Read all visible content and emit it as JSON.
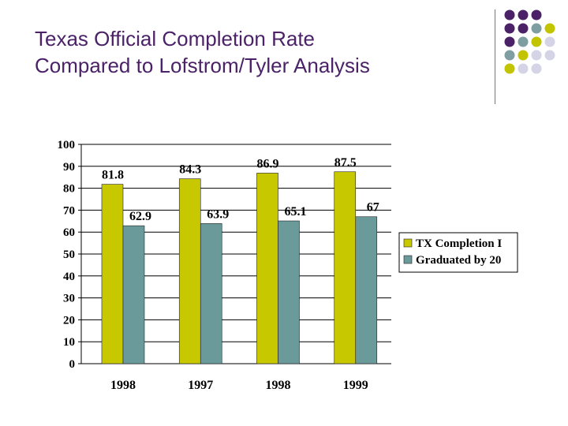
{
  "slide": {
    "title_line1": "Texas Official Completion Rate",
    "title_line2": "Compared to Lofstrom/Tyler Analysis"
  },
  "colors": {
    "title": "#4b2268",
    "series1": "#c8c800",
    "series2": "#6a9a9a",
    "dot_purple": "#4b2268",
    "dot_teal": "#7f9ea2",
    "dot_olive": "#c3c400",
    "dot_lavender": "#d4d4e6"
  },
  "chart_data": {
    "type": "bar",
    "title": "",
    "xlabel": "",
    "ylabel": "",
    "categories": [
      "1998",
      "1997",
      "1998",
      "1999"
    ],
    "ylim": [
      0,
      100
    ],
    "yticks": [
      0,
      10,
      20,
      30,
      40,
      50,
      60,
      70,
      80,
      90,
      100
    ],
    "grid": true,
    "legend_position": "right",
    "series": [
      {
        "name": "TX Completion I",
        "values": [
          81.8,
          84.3,
          86.9,
          87.5
        ],
        "labels": [
          "81.8",
          "84.3",
          "86.9",
          "87.5"
        ]
      },
      {
        "name": "Graduated by 20",
        "values": [
          62.9,
          63.9,
          65.1,
          67
        ],
        "labels": [
          "62.9",
          "63.9",
          "65.1",
          "67"
        ]
      }
    ]
  }
}
